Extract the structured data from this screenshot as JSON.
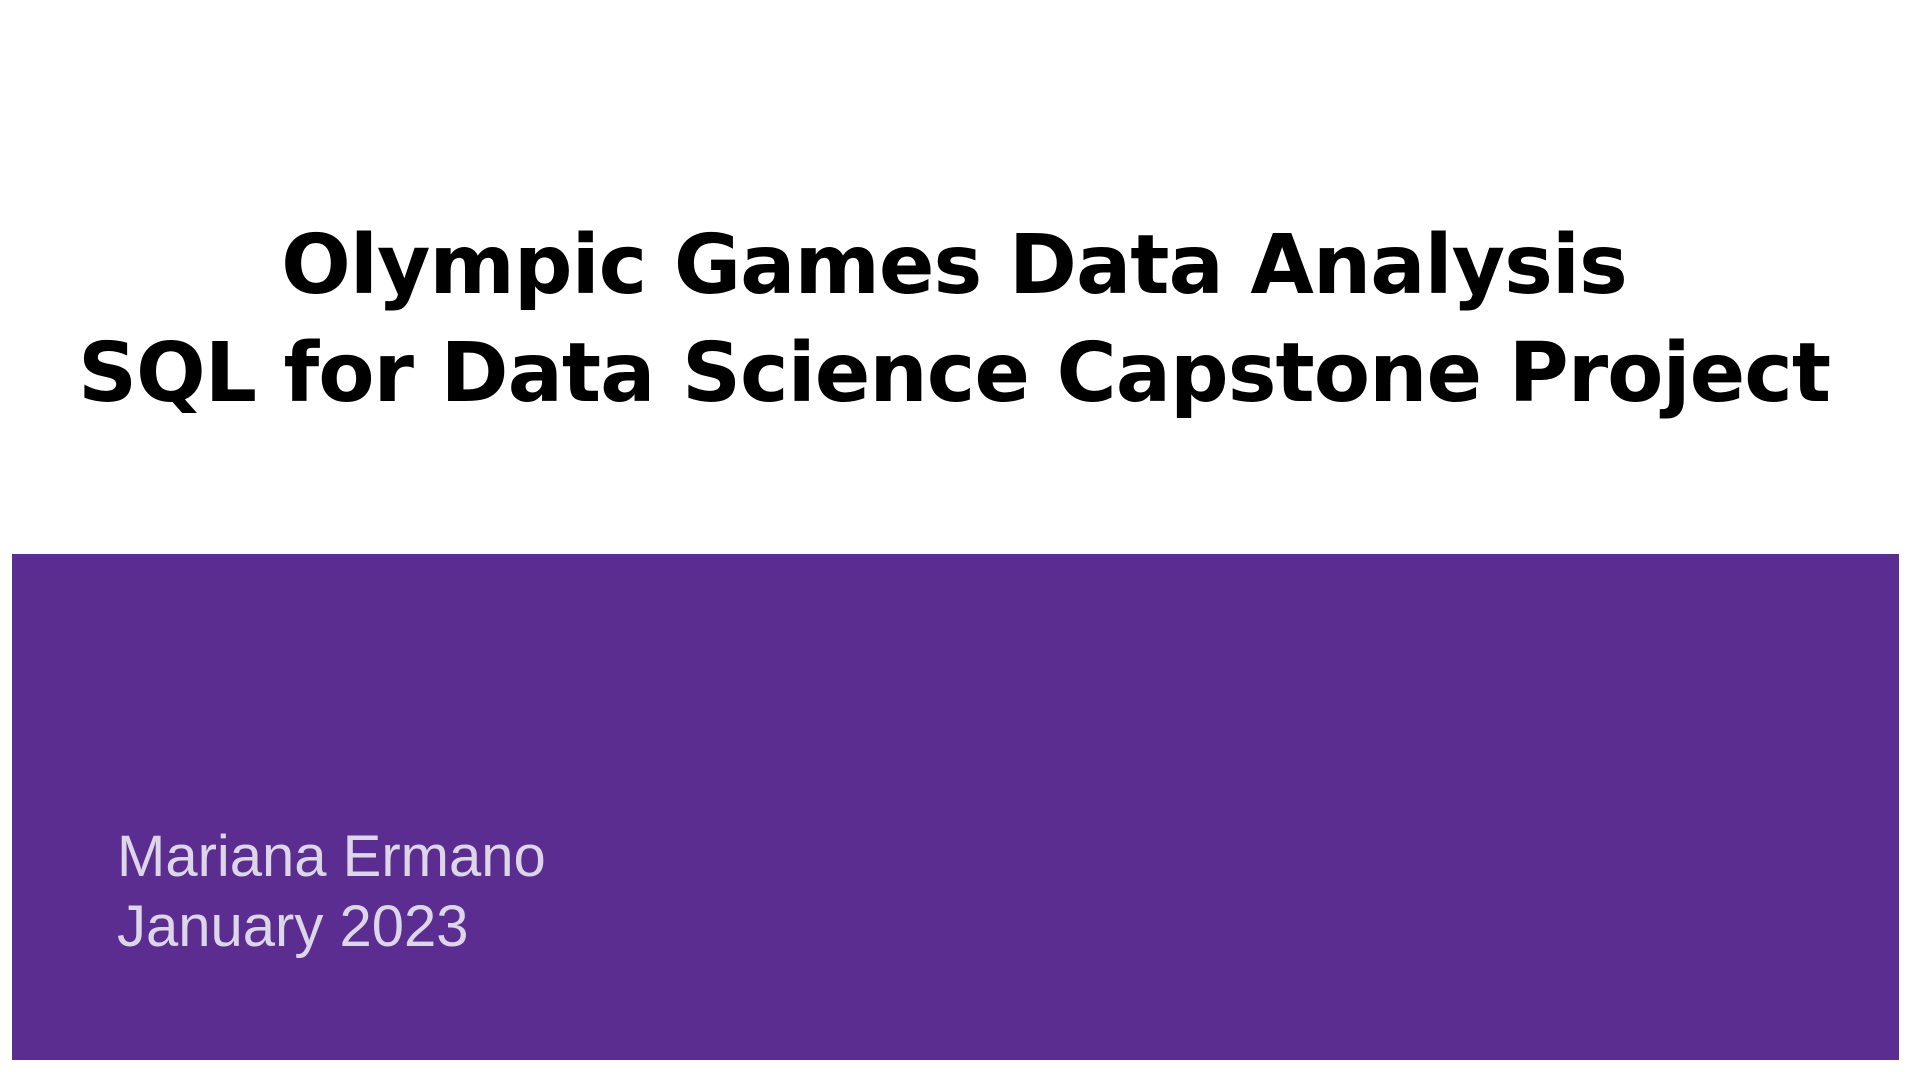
{
  "slide": {
    "title_lines": [
      "Olympic Games Data Analysis",
      "SQL for Data Science Capstone Project"
    ],
    "author": "Mariana Ermano",
    "date": "January 2023"
  },
  "colors": {
    "background": "#ffffff",
    "band": "#5c2d91",
    "title_text": "#000000",
    "subtitle_text": "#ddd6e8"
  }
}
